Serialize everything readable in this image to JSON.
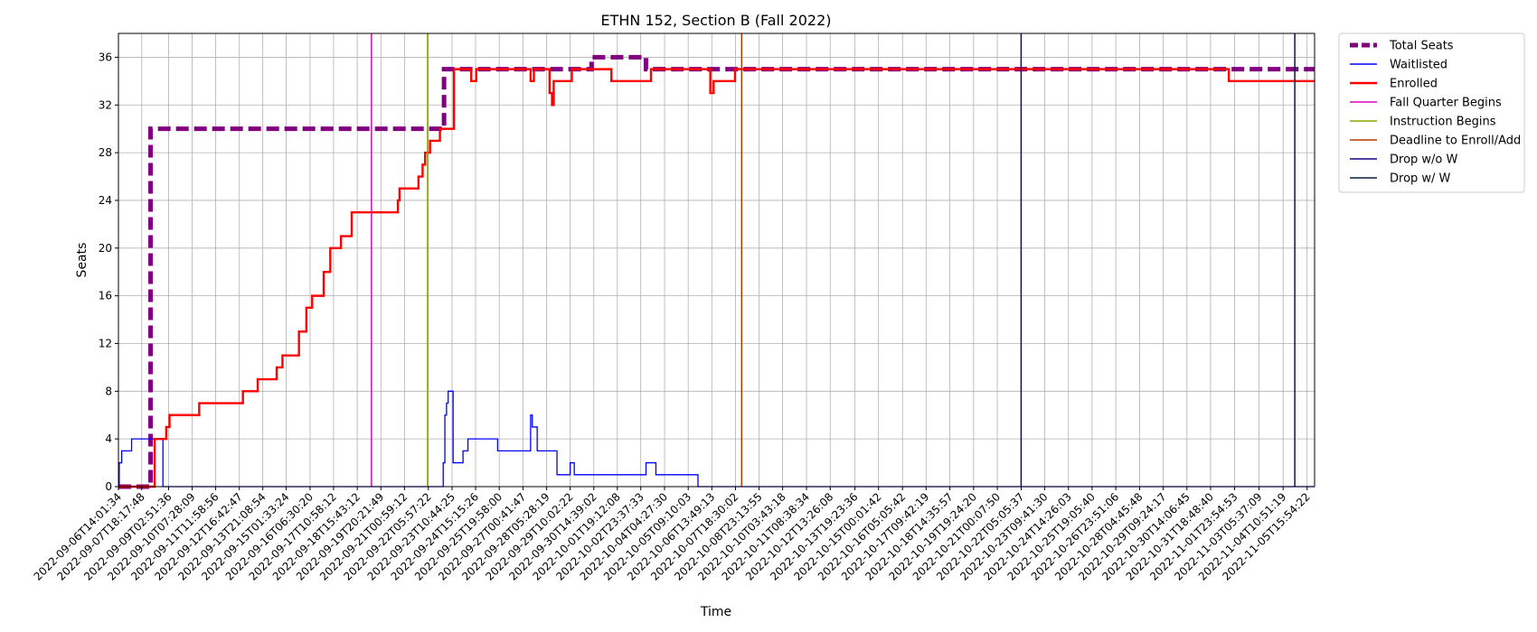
{
  "chart_data": {
    "type": "line",
    "title": "ETHN 152, Section B (Fall 2022)",
    "xlabel": "Time",
    "ylabel": "Seats",
    "xlim": [
      "2022-09-06T14:01:34",
      "2022-11-06T01:00:00"
    ],
    "ylim": [
      0,
      38
    ],
    "yticks": [
      0,
      4,
      8,
      12,
      16,
      20,
      24,
      28,
      32,
      36
    ],
    "xtick_labels": [
      "2022-09-06T14:01:34",
      "2022-09-07T18:17:48",
      "2022-09-09T02:51:36",
      "2022-09-10T07:28:09",
      "2022-09-11T11:58:56",
      "2022-09-12T16:42:47",
      "2022-09-13T21:08:54",
      "2022-09-15T01:33:24",
      "2022-09-16T06:30:20",
      "2022-09-17T10:58:12",
      "2022-09-18T15:43:12",
      "2022-09-19T20:21:49",
      "2022-09-21T00:59:12",
      "2022-09-22T05:57:22",
      "2022-09-23T10:44:25",
      "2022-09-24T15:15:26",
      "2022-09-25T19:58:00",
      "2022-09-27T00:41:47",
      "2022-09-28T05:28:19",
      "2022-09-29T10:02:22",
      "2022-09-30T14:39:02",
      "2022-10-01T19:12:08",
      "2022-10-02T23:37:33",
      "2022-10-04T04:27:30",
      "2022-10-05T09:10:03",
      "2022-10-06T13:49:13",
      "2022-10-07T18:30:02",
      "2022-10-08T23:13:55",
      "2022-10-10T03:43:18",
      "2022-10-11T08:38:34",
      "2022-10-12T13:26:08",
      "2022-10-13T19:23:36",
      "2022-10-15T00:01:42",
      "2022-10-16T05:05:42",
      "2022-10-17T09:42:19",
      "2022-10-18T14:35:57",
      "2022-10-19T19:24:20",
      "2022-10-21T00:07:50",
      "2022-10-22T05:05:37",
      "2022-10-23T09:41:30",
      "2022-10-24T14:26:03",
      "2022-10-25T19:05:40",
      "2022-10-26T23:51:06",
      "2022-10-28T04:45:48",
      "2022-10-29T09:24:17",
      "2022-10-30T14:06:45",
      "2022-10-31T18:48:40",
      "2022-11-01T23:54:53",
      "2022-11-03T05:37:09",
      "2022-11-04T10:51:19",
      "2022-11-05T15:54:22"
    ],
    "grid": true,
    "legend_position": "outside-top-right",
    "series": [
      {
        "name": "Total Seats",
        "color": "#800080",
        "style": "dashed-thick",
        "points": [
          [
            "2022-09-06T14:01:34",
            0
          ],
          [
            "2022-09-08T05:00:00",
            0
          ],
          [
            "2022-09-08T05:00:00",
            30
          ],
          [
            "2022-09-23T01:00:00",
            30
          ],
          [
            "2022-09-23T01:00:00",
            35
          ],
          [
            "2022-09-30T12:00:00",
            35
          ],
          [
            "2022-09-30T12:00:00",
            36
          ],
          [
            "2022-10-03T06:00:00",
            36
          ],
          [
            "2022-10-03T06:00:00",
            35
          ],
          [
            "2022-11-06T01:00:00",
            35
          ]
        ]
      },
      {
        "name": "Waitlisted",
        "color": "#0000ff",
        "style": "solid-thin",
        "points": [
          [
            "2022-09-06T14:01:34",
            0
          ],
          [
            "2022-09-06T15:00:00",
            2
          ],
          [
            "2022-09-06T18:00:00",
            3
          ],
          [
            "2022-09-07T06:00:00",
            4
          ],
          [
            "2022-09-08T20:00:00",
            4
          ],
          [
            "2022-09-08T20:00:00",
            0
          ],
          [
            "2022-09-22T23:00:00",
            0
          ],
          [
            "2022-09-23T00:00:00",
            2
          ],
          [
            "2022-09-23T02:00:00",
            6
          ],
          [
            "2022-09-23T04:00:00",
            7
          ],
          [
            "2022-09-23T06:00:00",
            8
          ],
          [
            "2022-09-23T12:00:00",
            2
          ],
          [
            "2022-09-24T00:00:00",
            3
          ],
          [
            "2022-09-24T06:00:00",
            4
          ],
          [
            "2022-09-25T18:00:00",
            3
          ],
          [
            "2022-09-27T10:00:00",
            6
          ],
          [
            "2022-09-27T12:00:00",
            5
          ],
          [
            "2022-09-27T18:00:00",
            3
          ],
          [
            "2022-09-28T18:00:00",
            1
          ],
          [
            "2022-09-29T10:00:00",
            2
          ],
          [
            "2022-09-29T15:00:00",
            1
          ],
          [
            "2022-10-03T06:00:00",
            2
          ],
          [
            "2022-10-03T18:00:00",
            1
          ],
          [
            "2022-10-05T21:00:00",
            0
          ],
          [
            "2022-11-06T01:00:00",
            0
          ]
        ]
      },
      {
        "name": "Enrolled",
        "color": "#ff0000",
        "style": "solid-thick",
        "points": [
          [
            "2022-09-06T14:01:34",
            0
          ],
          [
            "2022-09-08T10:00:00",
            4
          ],
          [
            "2022-09-09T00:00:00",
            5
          ],
          [
            "2022-09-09T04:00:00",
            6
          ],
          [
            "2022-09-10T16:00:00",
            7
          ],
          [
            "2022-09-12T21:00:00",
            8
          ],
          [
            "2022-09-13T15:00:00",
            9
          ],
          [
            "2022-09-14T14:00:00",
            10
          ],
          [
            "2022-09-14T21:00:00",
            11
          ],
          [
            "2022-09-15T17:00:00",
            13
          ],
          [
            "2022-09-16T02:00:00",
            15
          ],
          [
            "2022-09-16T09:00:00",
            16
          ],
          [
            "2022-09-16T23:00:00",
            18
          ],
          [
            "2022-09-17T07:00:00",
            20
          ],
          [
            "2022-09-17T20:00:00",
            21
          ],
          [
            "2022-09-18T09:00:00",
            23
          ],
          [
            "2022-09-20T17:00:00",
            24
          ],
          [
            "2022-09-20T19:00:00",
            25
          ],
          [
            "2022-09-21T18:00:00",
            26
          ],
          [
            "2022-09-21T23:00:00",
            27
          ],
          [
            "2022-09-22T02:00:00",
            28
          ],
          [
            "2022-09-22T08:00:00",
            29
          ],
          [
            "2022-09-22T20:00:00",
            30
          ],
          [
            "2022-09-23T13:00:00",
            35
          ],
          [
            "2022-09-24T10:00:00",
            34
          ],
          [
            "2022-09-24T16:00:00",
            35
          ],
          [
            "2022-09-27T10:00:00",
            34
          ],
          [
            "2022-09-27T14:00:00",
            35
          ],
          [
            "2022-09-28T09:00:00",
            33
          ],
          [
            "2022-09-28T12:00:00",
            32
          ],
          [
            "2022-09-28T14:00:00",
            34
          ],
          [
            "2022-09-29T12:00:00",
            35
          ],
          [
            "2022-10-01T12:00:00",
            34
          ],
          [
            "2022-10-03T12:00:00",
            35
          ],
          [
            "2022-10-06T12:00:00",
            33
          ],
          [
            "2022-10-06T16:00:00",
            34
          ],
          [
            "2022-10-07T18:00:00",
            35
          ],
          [
            "2022-11-01T17:00:00",
            34
          ],
          [
            "2022-11-06T01:00:00",
            34
          ]
        ]
      }
    ],
    "markers": [
      {
        "name": "Fall Quarter Begins",
        "color": "#dd00bb",
        "x": "2022-09-19T09:00:00"
      },
      {
        "name": "Instruction Begins",
        "color": "#88aa00",
        "x": "2022-09-22T05:00:00"
      },
      {
        "name": "Deadline to Enroll/Add",
        "color": "#b63b00",
        "x": "2022-10-08T02:00:00"
      },
      {
        "name": "Drop w/o W",
        "color": "#1a0088",
        "x": "2022-10-22T05:00:00"
      },
      {
        "name": "Drop w/ W",
        "color": "#0b1a44",
        "x": "2022-11-05T01:00:00"
      }
    ]
  }
}
